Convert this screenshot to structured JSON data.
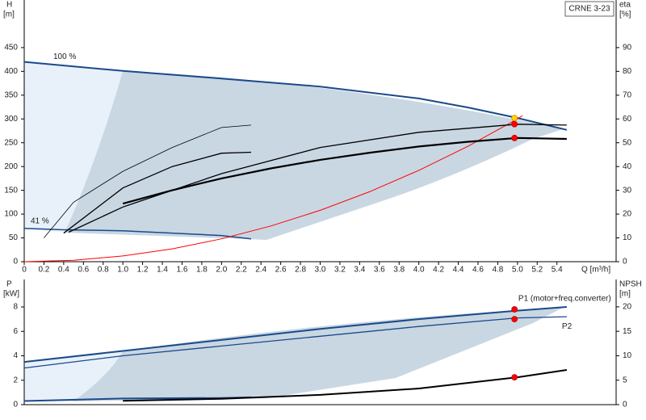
{
  "chart_data": [
    {
      "type": "line",
      "title": "CRNE 3-23",
      "ylabel": "H",
      "yunit": "[m]",
      "y2label": "eta",
      "y2unit": "[%]",
      "xlabel": "Q [m³/h]",
      "xlim": [
        0,
        6
      ],
      "ylim": [
        0,
        550
      ],
      "y2lim": [
        0,
        110
      ],
      "xticks": [
        0,
        0.2,
        0.4,
        0.6,
        0.8,
        {
          "value": 1,
          "label": "1.0"
        },
        1.2,
        1.4,
        1.6,
        1.8,
        {
          "value": 2,
          "label": "2.0"
        },
        2.2,
        2.4,
        2.6,
        2.8,
        {
          "value": 3,
          "label": "3.0"
        },
        3.2,
        3.4,
        3.6,
        3.8,
        {
          "value": 4,
          "label": "4.0"
        },
        4.2,
        4.4,
        4.6,
        4.8,
        {
          "value": 5,
          "label": "5.0"
        },
        5.2,
        5.4
      ],
      "yticks": [
        0,
        50,
        100,
        150,
        200,
        250,
        300,
        350,
        400,
        450
      ],
      "y2ticks": [
        0,
        10,
        20,
        30,
        40,
        50,
        60,
        70,
        80,
        90
      ],
      "series": [
        {
          "name": "100 %",
          "color": "#1a4a8a",
          "width": 2,
          "x": [
            0,
            1,
            2,
            3,
            4,
            4.5,
            5,
            5.5
          ],
          "values": [
            420,
            401,
            385,
            368,
            343,
            324,
            302,
            277
          ]
        },
        {
          "name": "41 %",
          "color": "#1a4a8a",
          "width": 1.5,
          "x": [
            0,
            0.4,
            1,
            2,
            2.3
          ],
          "values": [
            70,
            67,
            65,
            55,
            48
          ]
        },
        {
          "color": "#ff0000",
          "width": 1,
          "x": [
            0,
            0.5,
            1,
            1.5,
            2,
            2.5,
            3,
            3.5,
            4,
            4.5,
            5,
            5.05
          ],
          "values": [
            0,
            3,
            12,
            27,
            48,
            75,
            108,
            147,
            192,
            243,
            300,
            307
          ]
        },
        {
          "color": "#000000",
          "width": 0.8,
          "x": [
            0.2,
            0.5,
            1,
            1.5,
            2,
            2.3
          ],
          "values": [
            50,
            125,
            190,
            240,
            282,
            287
          ]
        },
        {
          "color": "#000000",
          "width": 1.3,
          "x": [
            0.4,
            1,
            1.5,
            2,
            2.3
          ],
          "values": [
            60,
            155,
            200,
            228,
            230
          ]
        },
        {
          "color": "#000000",
          "width": 1.3,
          "x": [
            0.45,
            1,
            2,
            3,
            4,
            5,
            5.5
          ],
          "values": [
            62,
            115,
            185,
            240,
            272,
            289,
            287
          ]
        },
        {
          "color": "#000000",
          "width": 2.2,
          "x": [
            1,
            1.5,
            2,
            2.5,
            3,
            3.5,
            4,
            4.5,
            5,
            5.5
          ],
          "values": [
            122,
            150,
            175,
            196,
            214,
            229,
            242,
            252,
            260,
            258
          ]
        }
      ],
      "markers": [
        {
          "x": 4.97,
          "y": 302,
          "color": "#ffd700"
        },
        {
          "x": 4.97,
          "y": 289,
          "color": "#ff0000"
        },
        {
          "x": 4.97,
          "y": 260,
          "color": "#ff0000"
        }
      ]
    },
    {
      "type": "line",
      "ylabel": "P",
      "yunit": "[kW]",
      "y2label": "NPSH",
      "y2unit": "[m]",
      "xlim": [
        0,
        6
      ],
      "ylim": [
        0,
        10.25
      ],
      "y2lim": [
        0,
        25.6
      ],
      "yticks": [
        0,
        2,
        4,
        6,
        8
      ],
      "y2ticks": [
        0,
        5,
        10,
        15,
        20
      ],
      "series": [
        {
          "name": "P1 (motor+freq.converter)",
          "color": "#1a4a8a",
          "width": 2,
          "x": [
            0,
            1,
            2,
            3,
            4,
            5,
            5.5
          ],
          "values": [
            3.5,
            4.4,
            5.3,
            6.2,
            7,
            7.7,
            8
          ]
        },
        {
          "name": "P2",
          "color": "#1a4a8a",
          "width": 1.3,
          "x": [
            0,
            1,
            2,
            3,
            4,
            5,
            5.5
          ],
          "values": [
            3,
            4,
            4.8,
            5.6,
            6.4,
            7.1,
            7.2
          ]
        },
        {
          "color": "#1a4a8a",
          "width": 2,
          "x": [
            0,
            1,
            2,
            2.3
          ],
          "values": [
            0.3,
            0.5,
            0.55,
            0.6
          ]
        },
        {
          "color": "#000000",
          "width": 2,
          "axis": "y2",
          "x": [
            1,
            2,
            3,
            4,
            5,
            5.5
          ],
          "values": [
            0.8,
            1.2,
            2,
            3.3,
            5.6,
            7.1
          ]
        }
      ],
      "markers": [
        {
          "x": 4.97,
          "y": 7.8,
          "color": "#ff0000"
        },
        {
          "x": 4.97,
          "y": 7,
          "color": "#ff0000"
        },
        {
          "x": 4.97,
          "y": 5.6,
          "color": "#ff0000",
          "axis": "y2"
        }
      ]
    }
  ]
}
